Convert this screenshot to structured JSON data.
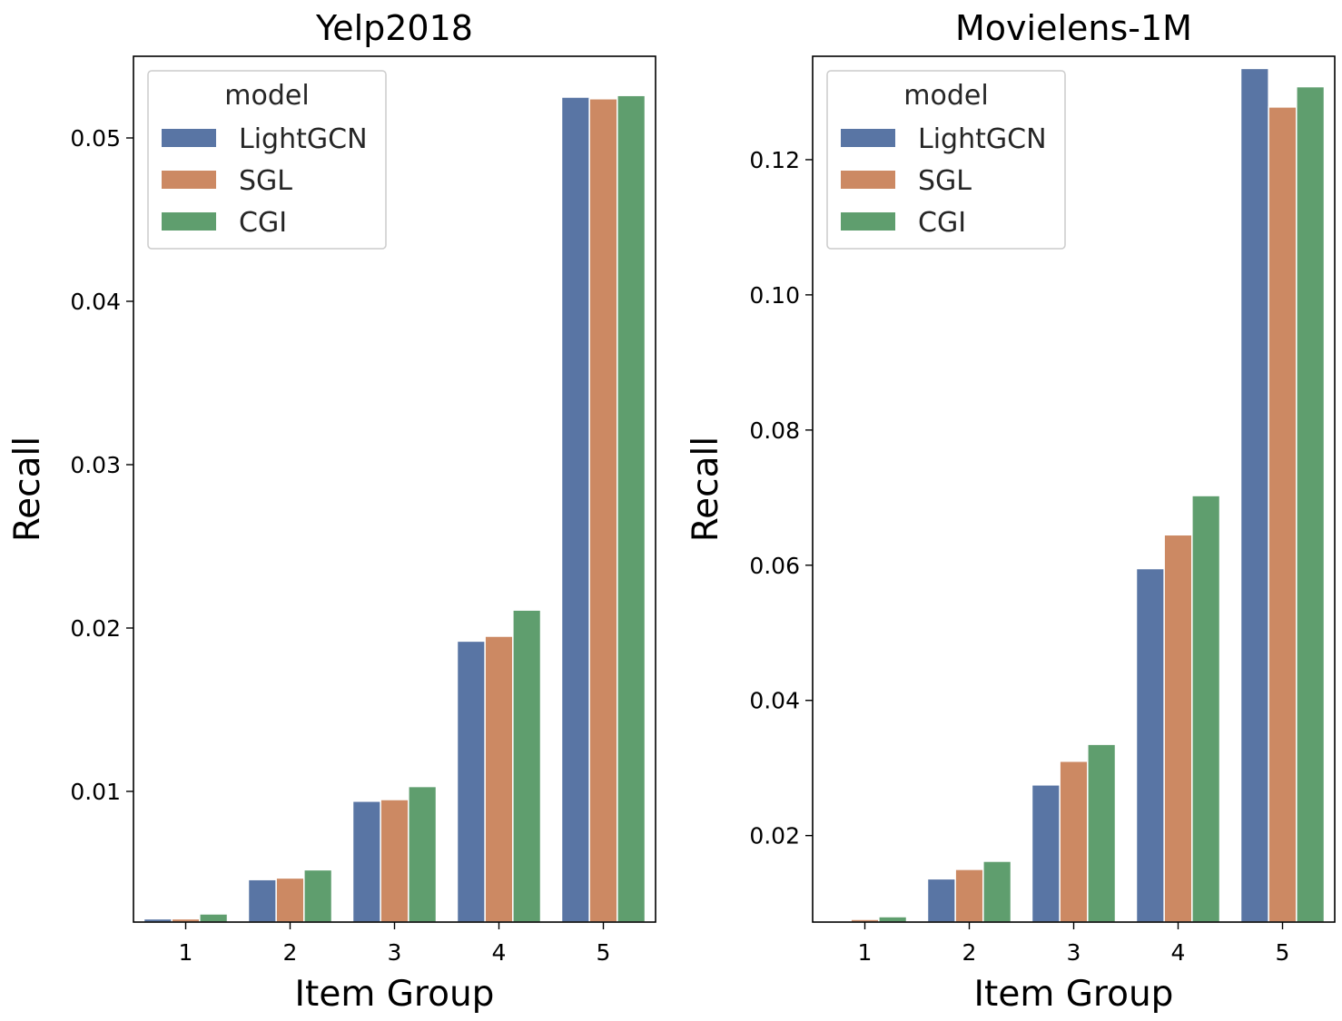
{
  "chart_data": [
    {
      "type": "bar",
      "title": "Yelp2018",
      "xlabel": "Item Group",
      "ylabel": "Recall",
      "categories": [
        "1",
        "2",
        "3",
        "4",
        "5"
      ],
      "ylim": [
        0.002,
        0.055
      ],
      "yticks": [
        "0.01",
        "0.02",
        "0.03",
        "0.04",
        "0.05"
      ],
      "ytick_values": [
        0.01,
        0.02,
        0.03,
        0.04,
        0.05
      ],
      "legend": {
        "title": "model",
        "placement": "top-left"
      },
      "grid": false,
      "series": [
        {
          "name": "LightGCN",
          "color": "#5975a4",
          "values": [
            0.0022,
            0.0046,
            0.0094,
            0.0192,
            0.0525
          ]
        },
        {
          "name": "SGL",
          "color": "#cc8963",
          "values": [
            0.0022,
            0.0047,
            0.0095,
            0.0195,
            0.0524
          ]
        },
        {
          "name": "CGI",
          "color": "#5f9e6e",
          "values": [
            0.0025,
            0.0052,
            0.0103,
            0.0211,
            0.0526
          ]
        }
      ]
    },
    {
      "type": "bar",
      "title": "Movielens-1M",
      "xlabel": "Item Group",
      "ylabel": "Recall",
      "categories": [
        "1",
        "2",
        "3",
        "4",
        "5"
      ],
      "ylim": [
        0.0072,
        0.1353
      ],
      "yticks": [
        "0.02",
        "0.04",
        "0.06",
        "0.08",
        "0.10",
        "0.12"
      ],
      "ytick_values": [
        0.02,
        0.04,
        0.06,
        0.08,
        0.1,
        0.12
      ],
      "legend": {
        "title": "model",
        "placement": "top-left"
      },
      "grid": false,
      "series": [
        {
          "name": "LightGCN",
          "color": "#5975a4",
          "values": [
            0.0072,
            0.0136,
            0.0275,
            0.0595,
            0.1335
          ]
        },
        {
          "name": "SGL",
          "color": "#cc8963",
          "values": [
            0.0076,
            0.015,
            0.031,
            0.0645,
            0.1278
          ]
        },
        {
          "name": "CGI",
          "color": "#5f9e6e",
          "values": [
            0.008,
            0.0162,
            0.0335,
            0.0703,
            0.1308
          ]
        }
      ]
    }
  ]
}
